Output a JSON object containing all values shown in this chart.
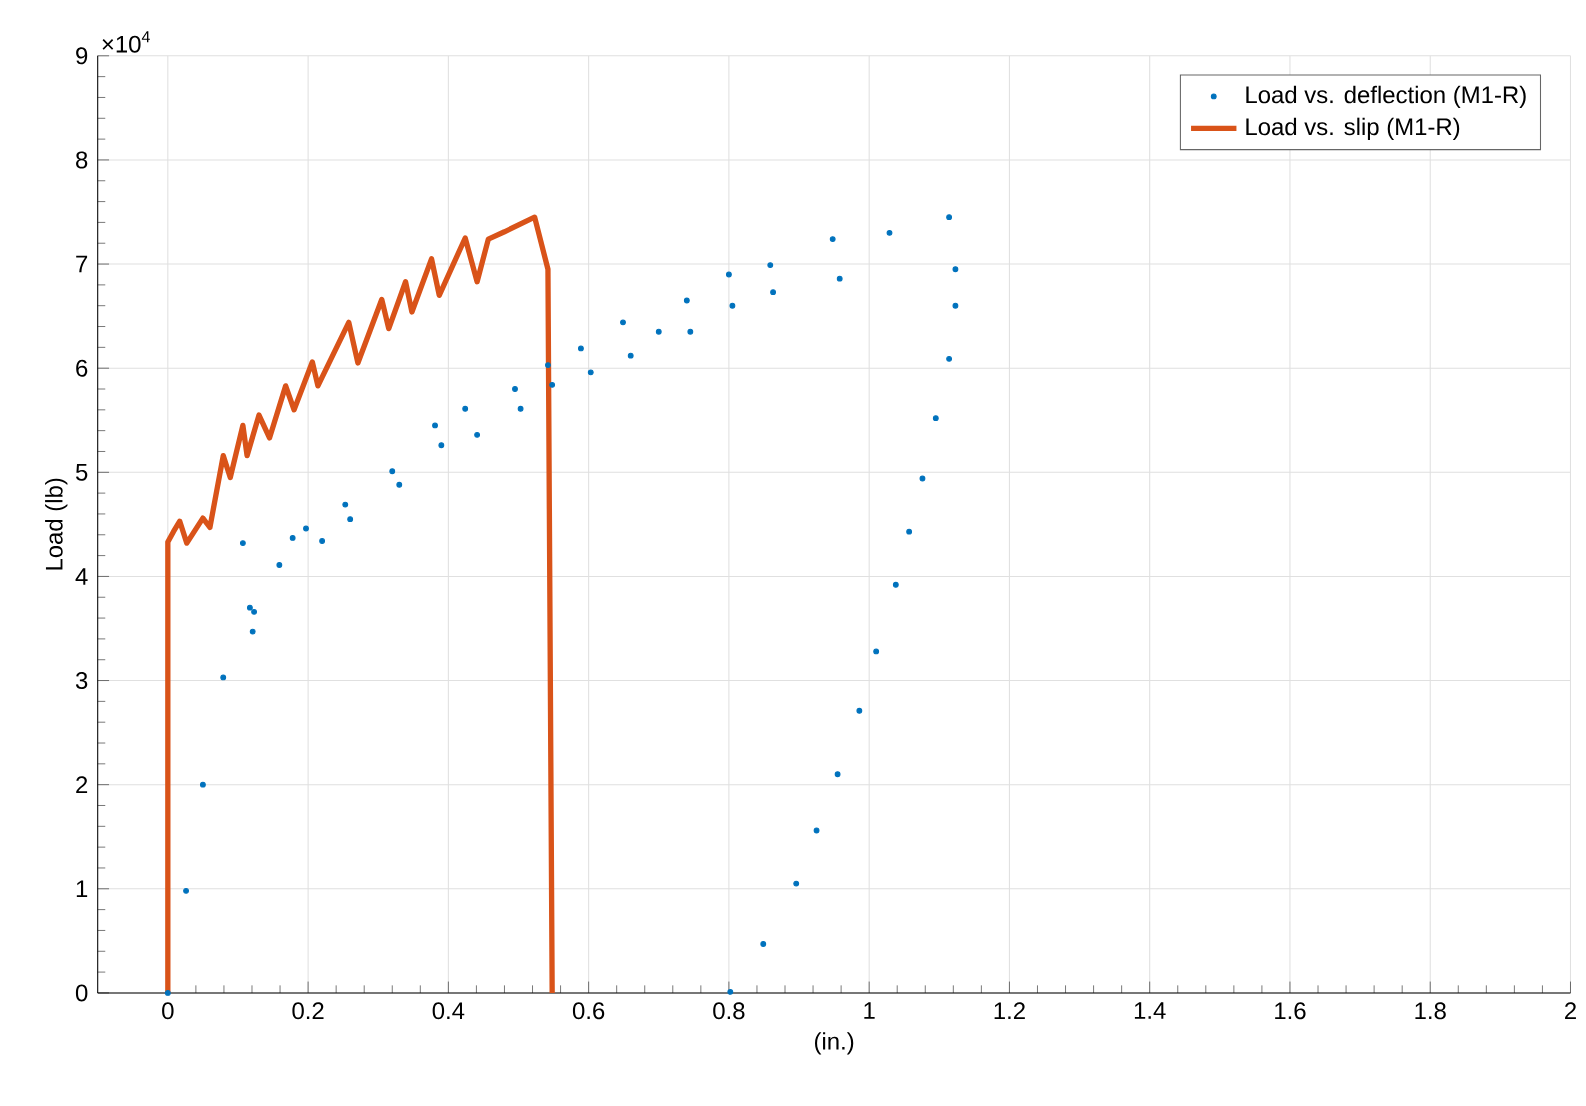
{
  "chart_data": {
    "type": "scatter",
    "xlabel": "(in.)",
    "ylabel": "Load (lb)",
    "annotations": [
      "×10$^{4}$"
    ],
    "xlim": [
      -0.1,
      2
    ],
    "xticks": [
      0,
      0.2,
      0.4,
      0.6,
      0.8,
      1,
      1.2,
      1.4,
      1.6,
      1.8,
      2
    ],
    "ylim": [
      0,
      9
    ],
    "yticks": [
      0,
      1,
      2,
      3,
      4,
      5,
      6,
      7,
      8,
      9
    ],
    "grid": true,
    "legend": "top right",
    "series": [
      {
        "name": "Load vs. deflection (M1-R)",
        "marker": "circle",
        "color": "#0072bd",
        "x": [
          0,
          0.026,
          0.05,
          0.079,
          0.107,
          0.117,
          0.121,
          0.123,
          0.159,
          0.178,
          0.197,
          0.22,
          0.253,
          0.26,
          0.32,
          0.33,
          0.381,
          0.39,
          0.424,
          0.441,
          0.495,
          0.503,
          0.542,
          0.548,
          0.589,
          0.603,
          0.649,
          0.66,
          0.7,
          0.74,
          0.745,
          0.8,
          0.805,
          0.859,
          0.863,
          0.948,
          0.958,
          1.029,
          1.114,
          1.123,
          1.123,
          1.114,
          1.095,
          1.076,
          1.057,
          1.038,
          1.01,
          0.986,
          0.955,
          0.925,
          0.896,
          0.849,
          0.802
        ],
        "values": [
          0,
          0.98,
          2.0,
          3.03,
          4.32,
          3.7,
          3.47,
          3.66,
          4.11,
          4.37,
          4.46,
          4.34,
          4.69,
          4.55,
          5.01,
          4.88,
          5.45,
          5.26,
          5.61,
          5.36,
          5.8,
          5.61,
          6.03,
          5.84,
          6.19,
          5.96,
          6.44,
          6.12,
          6.35,
          6.65,
          6.35,
          6.9,
          6.6,
          6.99,
          6.73,
          7.24,
          6.86,
          7.3,
          7.45,
          6.95,
          6.6,
          6.09,
          5.52,
          4.94,
          4.43,
          3.92,
          3.28,
          2.71,
          2.1,
          1.56,
          1.05,
          0.47,
          0.01
        ]
      },
      {
        "name": "Load vs. slip (M1-R)",
        "type": "line",
        "marker": "none",
        "line_style": "solid",
        "color": "#d95319",
        "x": [
          0,
          0,
          0.008,
          0.017,
          0.027,
          0.05,
          0.06,
          0.079,
          0.089,
          0.107,
          0.113,
          0.13,
          0.145,
          0.168,
          0.18,
          0.206,
          0.214,
          0.258,
          0.271,
          0.305,
          0.315,
          0.339,
          0.348,
          0.376,
          0.387,
          0.424,
          0.441,
          0.457,
          0.48,
          0.523,
          0.542,
          0.548
        ],
        "values": [
          0,
          4.33,
          4.43,
          4.53,
          4.32,
          4.56,
          4.47,
          5.16,
          4.95,
          5.45,
          5.16,
          5.55,
          5.33,
          5.83,
          5.6,
          6.06,
          5.83,
          6.44,
          6.05,
          6.66,
          6.38,
          6.83,
          6.54,
          7.05,
          6.7,
          7.25,
          6.83,
          7.24,
          7.31,
          7.45,
          6.95,
          0
        ]
      }
    ]
  }
}
